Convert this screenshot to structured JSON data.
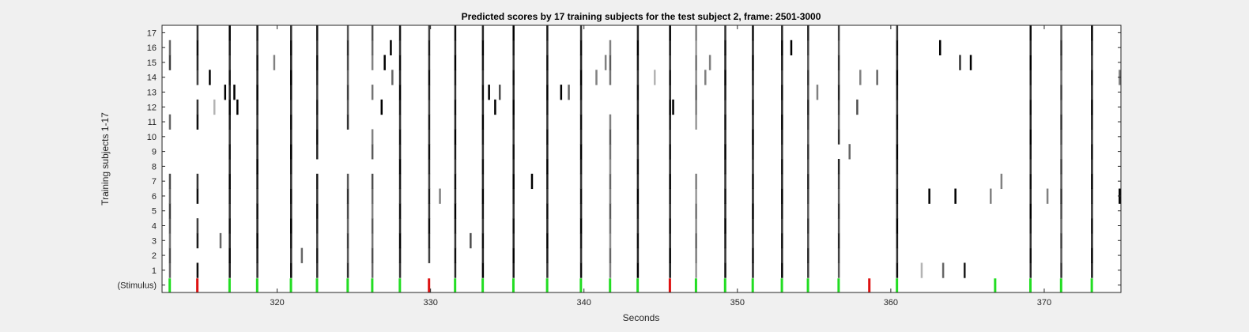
{
  "chart_data": {
    "type": "heatmap",
    "title": "Predicted scores by 17 training subjects for the test subject 2, frame: 2501-3000",
    "xlabel": "Seconds",
    "ylabel": "Training subjects 1-17",
    "xlim": [
      312.5,
      375
    ],
    "xticks": [
      320,
      330,
      340,
      350,
      360,
      370
    ],
    "ytick_labels": [
      "(Stimulus)",
      "1",
      "2",
      "3",
      "4",
      "5",
      "6",
      "7",
      "8",
      "9",
      "10",
      "11",
      "12",
      "13",
      "14",
      "15",
      "16",
      "17"
    ],
    "grid": false,
    "colors": {
      "stimulus": "#22dd22",
      "stimulus_alt": "#dd1111",
      "score_high": "#000000",
      "background": "#ffffff"
    },
    "stimulus": [
      {
        "x": 313.0,
        "color": "green"
      },
      {
        "x": 314.8,
        "color": "red"
      },
      {
        "x": 316.9,
        "color": "green"
      },
      {
        "x": 318.7,
        "color": "green"
      },
      {
        "x": 320.9,
        "color": "green"
      },
      {
        "x": 322.6,
        "color": "green"
      },
      {
        "x": 324.6,
        "color": "green"
      },
      {
        "x": 326.2,
        "color": "green"
      },
      {
        "x": 328.0,
        "color": "green"
      },
      {
        "x": 329.9,
        "color": "red"
      },
      {
        "x": 331.6,
        "color": "green"
      },
      {
        "x": 333.4,
        "color": "green"
      },
      {
        "x": 335.4,
        "color": "green"
      },
      {
        "x": 337.6,
        "color": "green"
      },
      {
        "x": 339.8,
        "color": "green"
      },
      {
        "x": 341.7,
        "color": "green"
      },
      {
        "x": 343.5,
        "color": "green"
      },
      {
        "x": 345.6,
        "color": "red"
      },
      {
        "x": 347.3,
        "color": "green"
      },
      {
        "x": 349.2,
        "color": "green"
      },
      {
        "x": 351.0,
        "color": "green"
      },
      {
        "x": 352.9,
        "color": "green"
      },
      {
        "x": 354.6,
        "color": "green"
      },
      {
        "x": 356.6,
        "color": "green"
      },
      {
        "x": 358.6,
        "color": "red"
      },
      {
        "x": 360.4,
        "color": "green"
      },
      {
        "x": 366.8,
        "color": "green"
      },
      {
        "x": 369.1,
        "color": "green"
      },
      {
        "x": 371.1,
        "color": "green"
      },
      {
        "x": 373.1,
        "color": "green"
      }
    ],
    "score_columns": [
      {
        "x": 313.0,
        "level": 0.75,
        "subjects": [
          1,
          2,
          3,
          4,
          5,
          6,
          7,
          11,
          15,
          16
        ]
      },
      {
        "x": 314.8,
        "level": 0.95,
        "subjects": [
          1,
          3,
          4,
          6,
          7,
          11,
          12,
          14,
          15,
          16,
          17
        ]
      },
      {
        "x": 316.9,
        "level": 1.0,
        "subjects": [
          1,
          2,
          3,
          4,
          5,
          6,
          7,
          8,
          9,
          10,
          11,
          12,
          13,
          14,
          15,
          16,
          17
        ]
      },
      {
        "x": 318.7,
        "level": 1.0,
        "subjects": [
          1,
          2,
          3,
          4,
          5,
          6,
          7,
          8,
          9,
          10,
          11,
          12,
          13,
          14,
          15,
          16,
          17
        ]
      },
      {
        "x": 320.9,
        "level": 1.0,
        "subjects": [
          1,
          2,
          3,
          4,
          5,
          6,
          7,
          8,
          9,
          10,
          11,
          12,
          13,
          14,
          15,
          16,
          17
        ]
      },
      {
        "x": 322.6,
        "level": 0.95,
        "subjects": [
          1,
          2,
          3,
          4,
          5,
          6,
          7,
          9,
          10,
          11,
          12,
          13,
          14,
          15,
          16,
          17
        ]
      },
      {
        "x": 324.6,
        "level": 0.8,
        "subjects": [
          1,
          2,
          3,
          4,
          5,
          6,
          7,
          11,
          12,
          13,
          14,
          15,
          16,
          17
        ]
      },
      {
        "x": 326.2,
        "level": 0.7,
        "subjects": [
          1,
          2,
          3,
          4,
          5,
          6,
          7,
          9,
          10,
          13,
          15,
          16,
          17
        ]
      },
      {
        "x": 328.0,
        "level": 1.0,
        "subjects": [
          1,
          2,
          3,
          4,
          5,
          6,
          7,
          8,
          9,
          10,
          11,
          12,
          13,
          14,
          15,
          16,
          17
        ]
      },
      {
        "x": 329.9,
        "level": 0.95,
        "subjects": [
          2,
          3,
          4,
          5,
          6,
          7,
          8,
          9,
          10,
          11,
          12,
          13,
          14,
          15,
          16,
          17
        ]
      },
      {
        "x": 331.6,
        "level": 1.0,
        "subjects": [
          1,
          2,
          3,
          4,
          5,
          6,
          7,
          8,
          9,
          10,
          11,
          12,
          13,
          14,
          15,
          16,
          17
        ]
      },
      {
        "x": 333.4,
        "level": 1.0,
        "subjects": [
          1,
          2,
          3,
          4,
          5,
          6,
          7,
          8,
          9,
          10,
          11,
          12,
          13,
          14,
          15,
          16,
          17
        ]
      },
      {
        "x": 335.4,
        "level": 1.0,
        "subjects": [
          1,
          2,
          3,
          4,
          5,
          6,
          7,
          8,
          9,
          10,
          11,
          12,
          13,
          14,
          15,
          16,
          17
        ]
      },
      {
        "x": 337.6,
        "level": 1.0,
        "subjects": [
          1,
          2,
          3,
          4,
          5,
          6,
          7,
          8,
          9,
          10,
          11,
          12,
          13,
          14,
          15,
          16,
          17
        ]
      },
      {
        "x": 339.8,
        "level": 1.0,
        "subjects": [
          1,
          2,
          3,
          4,
          5,
          6,
          7,
          8,
          9,
          10,
          11,
          12,
          13,
          14,
          15,
          16,
          17
        ]
      },
      {
        "x": 341.7,
        "level": 0.65,
        "subjects": [
          1,
          2,
          3,
          4,
          5,
          6,
          7,
          8,
          9,
          10,
          11,
          14,
          15,
          16
        ]
      },
      {
        "x": 343.5,
        "level": 1.0,
        "subjects": [
          1,
          2,
          3,
          4,
          5,
          6,
          7,
          8,
          9,
          10,
          11,
          12,
          13,
          14,
          15,
          16,
          17
        ]
      },
      {
        "x": 345.6,
        "level": 1.0,
        "subjects": [
          1,
          2,
          3,
          4,
          5,
          6,
          7,
          8,
          9,
          10,
          11,
          12,
          13,
          14,
          15,
          16,
          17
        ]
      },
      {
        "x": 347.3,
        "level": 0.6,
        "subjects": [
          1,
          2,
          3,
          4,
          5,
          6,
          7,
          11,
          12,
          13,
          14,
          15,
          16,
          17
        ]
      },
      {
        "x": 349.2,
        "level": 1.0,
        "subjects": [
          1,
          2,
          3,
          4,
          5,
          6,
          7,
          8,
          9,
          10,
          11,
          12,
          13,
          14,
          15,
          16,
          17
        ]
      },
      {
        "x": 351.0,
        "level": 1.0,
        "subjects": [
          1,
          2,
          3,
          4,
          5,
          6,
          7,
          8,
          9,
          10,
          11,
          12,
          13,
          14,
          15,
          16,
          17
        ]
      },
      {
        "x": 352.9,
        "level": 1.0,
        "subjects": [
          1,
          2,
          3,
          4,
          5,
          6,
          7,
          8,
          9,
          10,
          11,
          12,
          13,
          14,
          15,
          16,
          17
        ]
      },
      {
        "x": 354.6,
        "level": 0.85,
        "subjects": [
          1,
          2,
          3,
          4,
          5,
          6,
          7,
          8,
          9,
          10,
          11,
          12,
          13,
          14,
          15,
          16,
          17
        ]
      },
      {
        "x": 356.6,
        "level": 0.85,
        "subjects": [
          1,
          2,
          3,
          4,
          5,
          6,
          7,
          8,
          10,
          11,
          12,
          13,
          14,
          15,
          16,
          17
        ]
      },
      {
        "x": 360.4,
        "level": 1.0,
        "subjects": [
          1,
          2,
          3,
          4,
          5,
          6,
          7,
          8,
          9,
          10,
          11,
          12,
          13,
          14,
          15,
          16,
          17
        ]
      },
      {
        "x": 369.1,
        "level": 1.0,
        "subjects": [
          1,
          2,
          3,
          4,
          5,
          6,
          7,
          8,
          9,
          10,
          11,
          12,
          13,
          14,
          15,
          16,
          17
        ]
      },
      {
        "x": 371.1,
        "level": 0.8,
        "subjects": [
          1,
          2,
          3,
          4,
          5,
          6,
          7,
          8,
          9,
          10,
          11,
          12,
          13,
          14,
          15,
          16,
          17
        ]
      },
      {
        "x": 373.1,
        "level": 1.0,
        "subjects": [
          1,
          2,
          3,
          4,
          5,
          6,
          7,
          8,
          9,
          10,
          11,
          12,
          13,
          14,
          15,
          16,
          17
        ]
      }
    ],
    "scattered_cells": [
      {
        "x": 315.6,
        "subject": 14,
        "level": 1.0
      },
      {
        "x": 315.9,
        "subject": 12,
        "level": 0.3
      },
      {
        "x": 316.3,
        "subject": 3,
        "level": 0.6
      },
      {
        "x": 316.6,
        "subject": 13,
        "level": 1.0
      },
      {
        "x": 317.2,
        "subject": 13,
        "level": 1.0
      },
      {
        "x": 317.4,
        "subject": 12,
        "level": 1.0
      },
      {
        "x": 319.8,
        "subject": 15,
        "level": 0.5
      },
      {
        "x": 321.6,
        "subject": 2,
        "level": 0.6
      },
      {
        "x": 326.8,
        "subject": 12,
        "level": 1.0
      },
      {
        "x": 327.0,
        "subject": 15,
        "level": 1.0
      },
      {
        "x": 327.4,
        "subject": 16,
        "level": 1.0
      },
      {
        "x": 327.5,
        "subject": 14,
        "level": 0.6
      },
      {
        "x": 330.6,
        "subject": 6,
        "level": 0.5
      },
      {
        "x": 332.6,
        "subject": 3,
        "level": 0.7
      },
      {
        "x": 333.8,
        "subject": 13,
        "level": 1.0
      },
      {
        "x": 334.5,
        "subject": 13,
        "level": 0.7
      },
      {
        "x": 334.2,
        "subject": 12,
        "level": 1.0
      },
      {
        "x": 336.6,
        "subject": 7,
        "level": 1.0
      },
      {
        "x": 338.5,
        "subject": 13,
        "level": 1.0
      },
      {
        "x": 339.0,
        "subject": 13,
        "level": 0.6
      },
      {
        "x": 340.8,
        "subject": 14,
        "level": 0.5
      },
      {
        "x": 341.4,
        "subject": 15,
        "level": 0.5
      },
      {
        "x": 344.6,
        "subject": 14,
        "level": 0.3
      },
      {
        "x": 345.8,
        "subject": 12,
        "level": 1.0
      },
      {
        "x": 347.9,
        "subject": 14,
        "level": 0.5
      },
      {
        "x": 348.2,
        "subject": 15,
        "level": 0.5
      },
      {
        "x": 353.5,
        "subject": 16,
        "level": 1.0
      },
      {
        "x": 355.2,
        "subject": 13,
        "level": 0.5
      },
      {
        "x": 357.3,
        "subject": 9,
        "level": 0.6
      },
      {
        "x": 357.8,
        "subject": 12,
        "level": 0.7
      },
      {
        "x": 358.0,
        "subject": 14,
        "level": 0.5
      },
      {
        "x": 359.1,
        "subject": 14,
        "level": 0.6
      },
      {
        "x": 362.0,
        "subject": 1,
        "level": 0.3
      },
      {
        "x": 362.5,
        "subject": 6,
        "level": 1.0
      },
      {
        "x": 363.2,
        "subject": 16,
        "level": 1.0
      },
      {
        "x": 363.4,
        "subject": 1,
        "level": 0.6
      },
      {
        "x": 364.2,
        "subject": 6,
        "level": 1.0
      },
      {
        "x": 364.5,
        "subject": 15,
        "level": 0.8
      },
      {
        "x": 364.8,
        "subject": 1,
        "level": 0.9
      },
      {
        "x": 365.2,
        "subject": 15,
        "level": 1.0
      },
      {
        "x": 366.5,
        "subject": 6,
        "level": 0.5
      },
      {
        "x": 367.2,
        "subject": 7,
        "level": 0.5
      },
      {
        "x": 370.2,
        "subject": 6,
        "level": 0.5
      },
      {
        "x": 374.9,
        "subject": 6,
        "level": 1.0
      },
      {
        "x": 374.9,
        "subject": 14,
        "level": 0.5
      }
    ]
  }
}
